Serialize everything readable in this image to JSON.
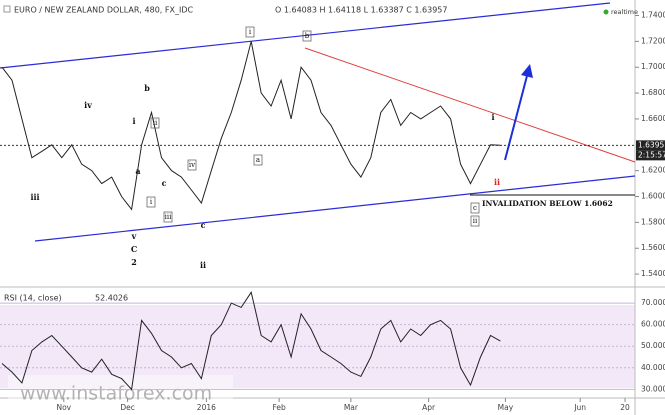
{
  "chart_data": {
    "type": "line",
    "title": "EURO / NEW ZEALAND DOLLAR, 480, FX_IDC",
    "ohlc": "O 1.64083 H 1.64118 L 1.63387 C 1.63957",
    "badge": "realtime",
    "annotation": "INVALIDATION BELOW 1.6062",
    "watermark": "www.instaforex.com",
    "last_price": 1.63957,
    "last_time": "2:15:57",
    "x": [
      0,
      2,
      4,
      6,
      8,
      10,
      12,
      14,
      16,
      18,
      20,
      22,
      24,
      26,
      28,
      30,
      32,
      34,
      36,
      38,
      40,
      42,
      44,
      46,
      48,
      50,
      52,
      54,
      56,
      58,
      60,
      62,
      64,
      66,
      68,
      70,
      72,
      74,
      76,
      78,
      80,
      82,
      84,
      86,
      88,
      90,
      92,
      94,
      96,
      98,
      100
    ],
    "xlim": [
      0,
      127
    ],
    "xticks": [
      {
        "value": 12.4,
        "label": "Nov"
      },
      {
        "value": 25.2,
        "label": "Dec"
      },
      {
        "value": 41,
        "label": "2016"
      },
      {
        "value": 55.6,
        "label": "Feb"
      },
      {
        "value": 70,
        "label": "Mar"
      },
      {
        "value": 85.6,
        "label": "Apr"
      },
      {
        "value": 101,
        "label": "May"
      },
      {
        "value": 116,
        "label": "Jun"
      },
      {
        "value": 125,
        "label": "20"
      }
    ],
    "series": [
      {
        "name": "EURNZD",
        "color": "#222222",
        "values": [
          1.7,
          1.69,
          1.66,
          1.63,
          1.635,
          1.64,
          1.63,
          1.64,
          1.625,
          1.62,
          1.61,
          1.615,
          1.6,
          1.59,
          1.64,
          1.665,
          1.63,
          1.62,
          1.615,
          1.605,
          1.595,
          1.62,
          1.645,
          1.665,
          1.69,
          1.72,
          1.68,
          1.67,
          1.69,
          1.66,
          1.7,
          1.69,
          1.665,
          1.655,
          1.64,
          1.625,
          1.615,
          1.63,
          1.665,
          1.675,
          1.655,
          1.665,
          1.66,
          1.665,
          1.67,
          1.66,
          1.625,
          1.61,
          1.625,
          1.64,
          1.63957
        ]
      }
    ],
    "ylim": [
      1.53,
      1.752
    ],
    "yticks": [
      {
        "value": 1.74,
        "label": "1.74000"
      },
      {
        "value": 1.72,
        "label": "1.72000"
      },
      {
        "value": 1.7,
        "label": "1.70000"
      },
      {
        "value": 1.68,
        "label": "1.68000"
      },
      {
        "value": 1.66,
        "label": "1.66000"
      },
      {
        "value": 1.62,
        "label": "1.62000"
      },
      {
        "value": 1.6,
        "label": "1.60000"
      },
      {
        "value": 1.58,
        "label": "1.58000"
      },
      {
        "value": 1.56,
        "label": "1.56000"
      },
      {
        "value": 1.54,
        "label": "1.54000"
      }
    ],
    "rsi": {
      "title": "RSI (14, close)",
      "last": 52.4026,
      "color": "#222222",
      "values": [
        42,
        38,
        33,
        48,
        52,
        55,
        50,
        45,
        40,
        38,
        44,
        37,
        35,
        30,
        62,
        56,
        48,
        45,
        40,
        42,
        35,
        55,
        60,
        70,
        68,
        75,
        55,
        52,
        60,
        45,
        65,
        58,
        48,
        45,
        42,
        38,
        36,
        45,
        58,
        62,
        52,
        58,
        55,
        60,
        62,
        58,
        40,
        32,
        45,
        55,
        52.4026
      ],
      "ylim": [
        26,
        77
      ],
      "yticks": [
        {
          "value": 70,
          "label": "70.0000"
        },
        {
          "value": 60,
          "label": "60.0000"
        },
        {
          "value": 50,
          "label": "50.0000"
        },
        {
          "value": 40,
          "label": "40.0000"
        },
        {
          "value": 30,
          "label": "30.0000"
        }
      ]
    },
    "wave_labels": [
      "iii",
      "iv",
      "i",
      "b",
      "ii",
      "a",
      "i",
      "c",
      "iii",
      "iv",
      "v",
      "C",
      "2",
      "c",
      "ii",
      "i",
      "a",
      "b",
      "i",
      "ii",
      "c",
      "ii"
    ]
  }
}
